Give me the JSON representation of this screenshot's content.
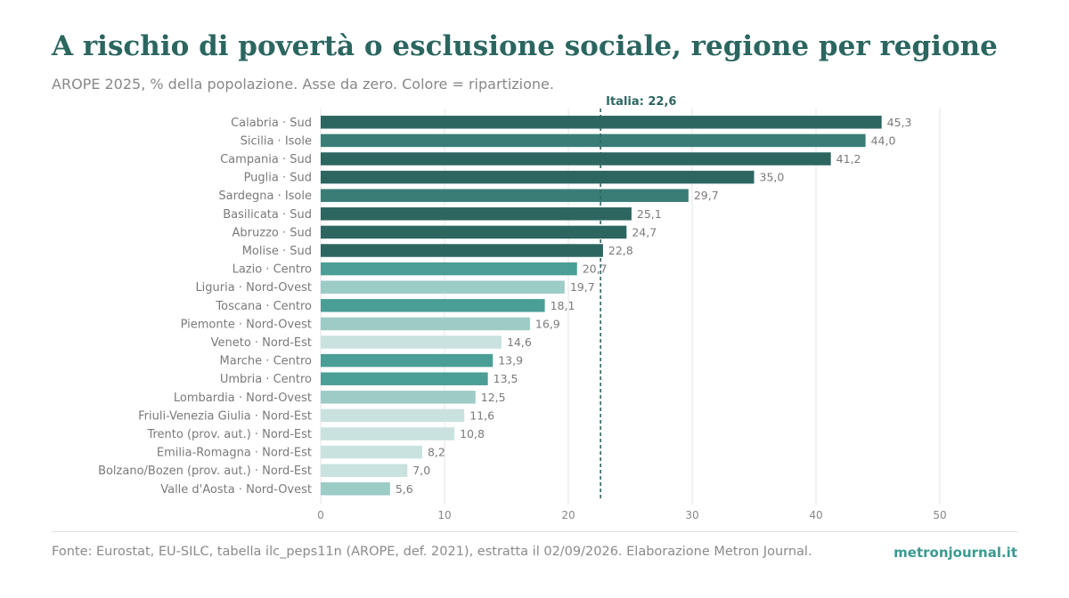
{
  "header": {
    "title": "A rischio di povertà o esclusione sociale, regione per regione",
    "subtitle": "AROPE 2025, % della popolazione. Asse da zero. Colore = ripartizione."
  },
  "footer": {
    "source": "Fonte: Eurostat, EU-SILC, tabella ilc_peps11n (AROPE, def. 2021), estratta il 02/09/2026. Elaborazione Metron Journal.",
    "brand": "metronjournal.it"
  },
  "chart_data": {
    "type": "bar",
    "orientation": "horizontal",
    "categories": [
      "Calabria · Sud",
      "Sicilia · Isole",
      "Campania · Sud",
      "Puglia · Sud",
      "Sardegna · Isole",
      "Basilicata · Sud",
      "Abruzzo · Sud",
      "Molise · Sud",
      "Lazio · Centro",
      "Liguria · Nord-Ovest",
      "Toscana · Centro",
      "Piemonte · Nord-Ovest",
      "Veneto · Nord-Est",
      "Marche · Centro",
      "Umbria · Centro",
      "Lombardia · Nord-Ovest",
      "Friuli-Venezia Giulia · Nord-Est",
      "Trento (prov. aut.) · Nord-Est",
      "Emilia-Romagna · Nord-Est",
      "Bolzano/Bozen (prov. aut.) · Nord-Est",
      "Valle d'Aosta · Nord-Ovest"
    ],
    "values": [
      45.3,
      44.0,
      41.2,
      35.0,
      29.7,
      25.1,
      24.7,
      22.8,
      20.7,
      19.7,
      18.1,
      16.9,
      14.6,
      13.9,
      13.5,
      12.5,
      11.6,
      10.8,
      8.2,
      7.0,
      5.6
    ],
    "value_labels": [
      "45,3",
      "44,0",
      "41,2",
      "35,0",
      "29,7",
      "25,1",
      "24,7",
      "22,8",
      "20,7",
      "19,7",
      "18,1",
      "16,9",
      "14,6",
      "13,9",
      "13,5",
      "12,5",
      "11,6",
      "10,8",
      "8,2",
      "7,0",
      "5,6"
    ],
    "groups": [
      "Sud",
      "Isole",
      "Sud",
      "Sud",
      "Isole",
      "Sud",
      "Sud",
      "Sud",
      "Centro",
      "Nord-Ovest",
      "Centro",
      "Nord-Ovest",
      "Nord-Est",
      "Centro",
      "Centro",
      "Nord-Ovest",
      "Nord-Est",
      "Nord-Est",
      "Nord-Est",
      "Nord-Est",
      "Nord-Ovest"
    ],
    "group_colors": {
      "Sud": "#2d6661",
      "Isole": "#3a7d77",
      "Centro": "#4a9e96",
      "Nord-Ovest": "#9dcbc6",
      "Nord-Est": "#c9e2df"
    },
    "xlim": [
      0,
      50
    ],
    "xticks": [
      0,
      10,
      20,
      30,
      40,
      50
    ],
    "xlabel": "",
    "ylabel": "",
    "grid": true,
    "reference_line": {
      "value": 22.6,
      "label": "Italia: 22,6",
      "color": "#2d6661"
    }
  }
}
